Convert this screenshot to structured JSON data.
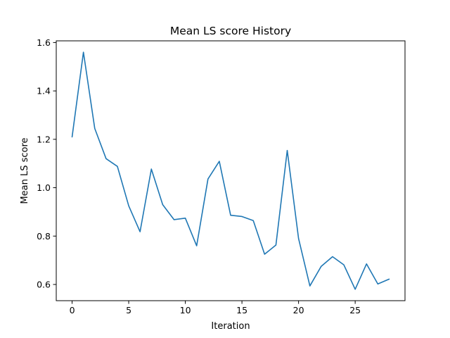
{
  "chart_data": {
    "type": "line",
    "title": "Mean LS score History",
    "xlabel": "Iteration",
    "ylabel": "Mean LS score",
    "xlim": [
      -1.4,
      29.4
    ],
    "ylim": [
      0.533,
      1.607
    ],
    "x_ticks": [
      0,
      5,
      10,
      15,
      20,
      25
    ],
    "y_ticks": [
      0.6,
      0.8,
      1.0,
      1.2,
      1.4,
      1.6
    ],
    "x_tick_labels": [
      "0",
      "5",
      "10",
      "15",
      "20",
      "25"
    ],
    "y_tick_labels": [
      "0.6",
      "0.8",
      "1.0",
      "1.2",
      "1.4",
      "1.6"
    ],
    "grid": false,
    "series": [
      {
        "color": "#1f77b4",
        "x": [
          0,
          1,
          2,
          3,
          4,
          5,
          6,
          7,
          8,
          9,
          10,
          11,
          12,
          13,
          14,
          15,
          16,
          17,
          18,
          19,
          20,
          21,
          22,
          23,
          24,
          25,
          26,
          27,
          28
        ],
        "values": [
          1.21,
          1.56,
          1.245,
          1.12,
          1.088,
          0.925,
          0.818,
          1.077,
          0.93,
          0.868,
          0.874,
          0.76,
          1.036,
          1.109,
          0.886,
          0.881,
          0.864,
          0.725,
          0.763,
          1.154,
          0.79,
          0.594,
          0.675,
          0.715,
          0.681,
          0.58,
          0.685,
          0.602,
          0.622
        ]
      }
    ]
  }
}
